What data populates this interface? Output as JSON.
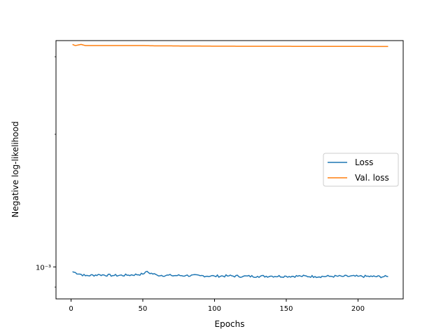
{
  "chart_data": {
    "type": "line",
    "title": "",
    "xlabel": "Epochs",
    "ylabel": "Negative log-likelihood",
    "x_ticks": [
      0,
      50,
      100,
      150,
      200
    ],
    "x_tick_labels": [
      "0",
      "50",
      "100",
      "150",
      "200"
    ],
    "xlim": [
      -10.5,
      231.5
    ],
    "y_scale": "log",
    "ylim": [
      0.000846,
      0.003264
    ],
    "y_ticks": [
      0.001
    ],
    "y_tick_labels": [
      "10⁻³"
    ],
    "legend_position": "center-right",
    "grid": false,
    "series": [
      {
        "name": "Loss",
        "color": "#1f77b4",
        "x": [
          1,
          10,
          20,
          30,
          40,
          50,
          52,
          60,
          70,
          80,
          90,
          100,
          110,
          120,
          130,
          140,
          150,
          160,
          170,
          180,
          190,
          200,
          210,
          221
        ],
        "y": [
          0.000975,
          0.000955,
          0.00096,
          0.000956,
          0.000958,
          0.000963,
          0.000975,
          0.000958,
          0.000956,
          0.000956,
          0.000955,
          0.000953,
          0.000954,
          0.000952,
          0.000952,
          0.000953,
          0.000952,
          0.000953,
          0.000951,
          0.000952,
          0.000952,
          0.000952,
          0.000951,
          0.00095
        ]
      },
      {
        "name": "Val. loss",
        "color": "#ff7f0e",
        "x": [
          1,
          3,
          7,
          10,
          20,
          30,
          40,
          50,
          60,
          70,
          80,
          90,
          100,
          110,
          120,
          130,
          140,
          150,
          160,
          170,
          180,
          190,
          200,
          210,
          221
        ],
        "y": [
          0.0032,
          0.00318,
          0.0032,
          0.00318,
          0.00318,
          0.00318,
          0.00318,
          0.00318,
          0.003175,
          0.003175,
          0.003172,
          0.003172,
          0.00317,
          0.00317,
          0.003168,
          0.003168,
          0.003168,
          0.003168,
          0.003167,
          0.003167,
          0.003167,
          0.003167,
          0.003167,
          0.003166,
          0.003165
        ]
      }
    ]
  }
}
